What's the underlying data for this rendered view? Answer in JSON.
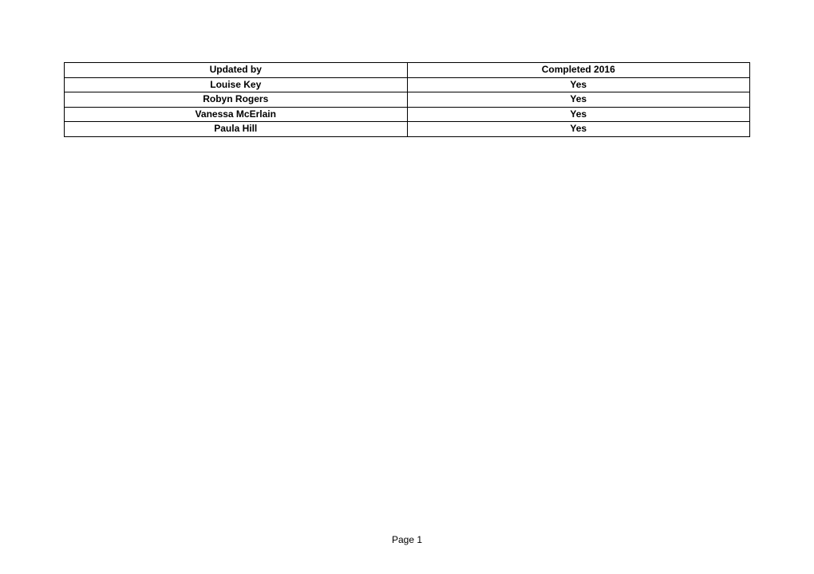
{
  "table": {
    "columns": [
      {
        "header": "Updated by"
      },
      {
        "header": "Completed 2016"
      }
    ],
    "rows": [
      [
        "Louise Key",
        "Yes"
      ],
      [
        "Robyn Rogers",
        "Yes"
      ],
      [
        "Vanessa McErlain",
        "Yes"
      ],
      [
        "Paula Hill",
        "Yes"
      ]
    ],
    "border_color": "#000000",
    "background_color": "#ffffff",
    "text_color": "#000000",
    "font_size": 12,
    "font_weight": "bold",
    "text_align": "center"
  },
  "footer": {
    "label": "Page 1"
  }
}
